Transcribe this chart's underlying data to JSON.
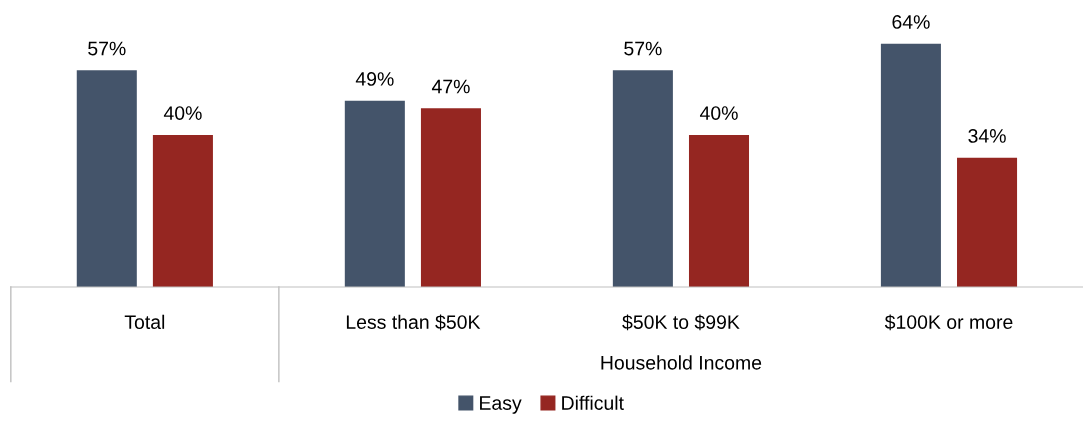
{
  "chart_data": {
    "type": "bar",
    "categories": [
      "Total",
      "Less than $50K",
      "$50K to $99K",
      "$100K or more"
    ],
    "series": [
      {
        "name": "Easy",
        "color": "#44546a",
        "values": [
          57,
          49,
          57,
          64
        ],
        "value_labels": [
          "57%",
          "49%",
          "57%",
          "64%"
        ]
      },
      {
        "name": "Difficult",
        "color": "#952621",
        "values": [
          40,
          47,
          40,
          34
        ],
        "value_labels": [
          "40%",
          "47%",
          "40%",
          "34%"
        ]
      }
    ],
    "annotations": [
      "Household Income"
    ],
    "legend": "bottom",
    "grid": false
  }
}
